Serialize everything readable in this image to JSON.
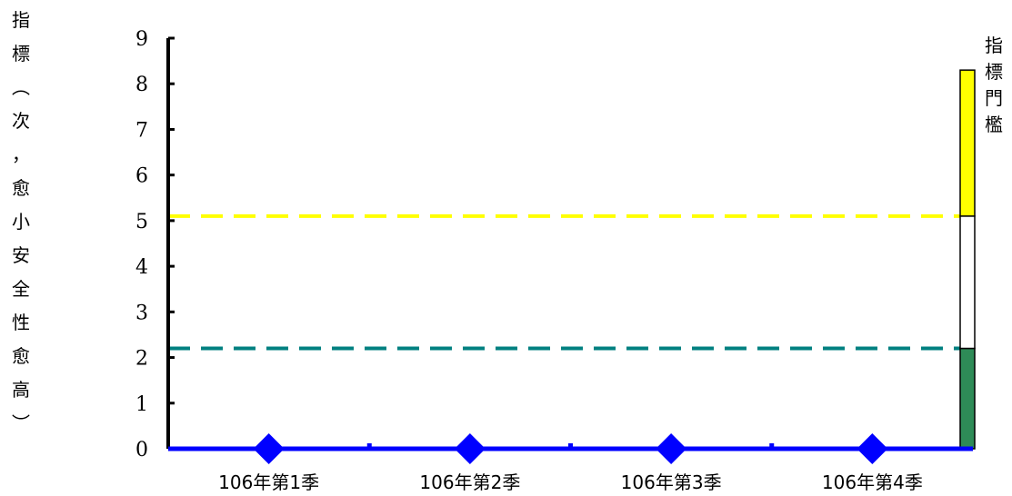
{
  "chart_data": {
    "type": "line",
    "title": "",
    "xlabel": "",
    "ylabel": "指標（次，愈小安全性愈高）",
    "categories": [
      "106年第1季",
      "106年第2季",
      "106年第3季",
      "106年第4季"
    ],
    "series": [
      {
        "values": [
          0,
          0,
          0,
          0
        ],
        "color": "#0000ff",
        "marker": "diamond"
      }
    ],
    "ylim": [
      0,
      9
    ],
    "yticks": [
      0,
      1,
      2,
      3,
      4,
      5,
      6,
      7,
      8,
      9
    ],
    "grid": false,
    "reference_lines": [
      {
        "value": 5.1,
        "color": "#ffff00",
        "style": "dashed"
      },
      {
        "value": 2.2,
        "color": "#008080",
        "style": "dashed"
      }
    ],
    "threshold_bar": {
      "label": "指標門檻",
      "segments": [
        {
          "from": 0,
          "to": 2.2,
          "color": "#2e8b57"
        },
        {
          "from": 2.2,
          "to": 5.1,
          "color": "#ffffff"
        },
        {
          "from": 5.1,
          "to": 8.3,
          "color": "#ffff00"
        }
      ]
    }
  }
}
